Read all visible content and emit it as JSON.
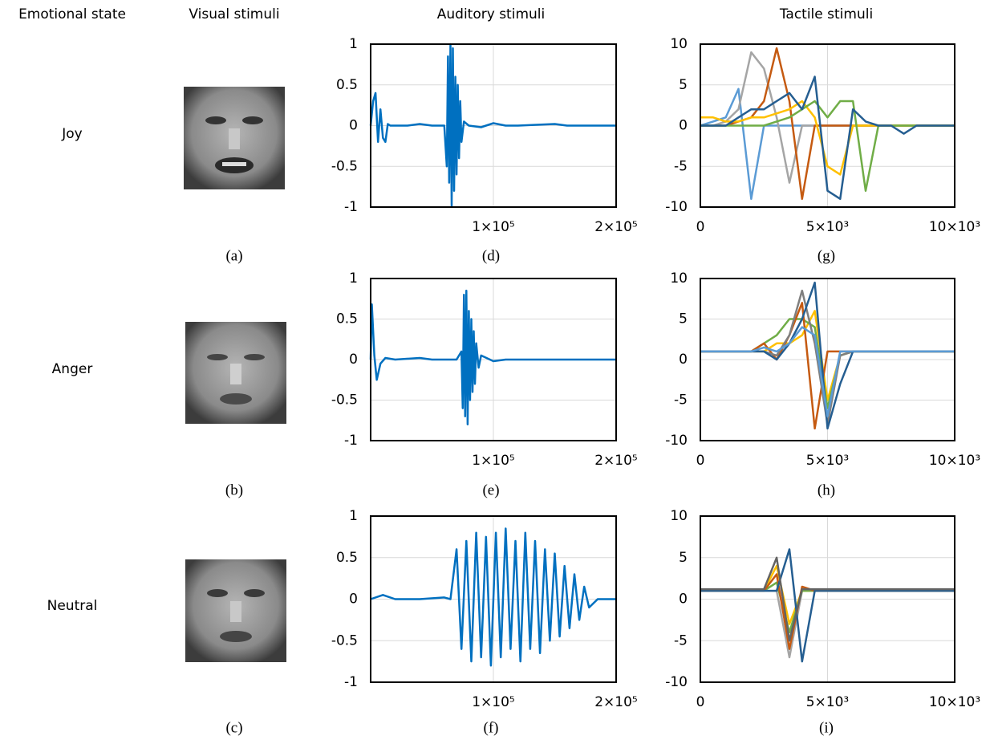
{
  "headers": [
    "Emotional state",
    "Visual stimuli",
    "Auditory stimuli",
    "Tactile stimuli"
  ],
  "rows": [
    {
      "label": "Joy",
      "caption": "(a)"
    },
    {
      "label": "Anger",
      "caption": "(b)"
    },
    {
      "label": "Neutral",
      "caption": "(c)"
    }
  ],
  "chart_data": [
    {
      "type": "line",
      "caption": "(d)",
      "x": [
        0,
        2000,
        4000,
        6000,
        8000,
        10000,
        12000,
        14000,
        16000,
        20000,
        30000,
        40000,
        50000,
        60000,
        62000,
        63000,
        64000,
        65000,
        66000,
        67000,
        68000,
        69000,
        70000,
        71000,
        72000,
        73000,
        74000,
        76000,
        80000,
        90000,
        100000,
        110000,
        120000,
        150000,
        160000,
        180000,
        200000
      ],
      "series": [
        {
          "color": "#0070c0",
          "values": [
            0,
            0.3,
            0.4,
            -0.2,
            0.2,
            -0.15,
            -0.2,
            0.02,
            0,
            0,
            0,
            0.02,
            0,
            0,
            -0.5,
            0.85,
            -0.7,
            1.0,
            -1.0,
            0.95,
            -0.8,
            0.6,
            -0.6,
            0.5,
            -0.4,
            0.3,
            -0.2,
            0.05,
            0,
            -0.02,
            0.03,
            0,
            0,
            0.02,
            0,
            0,
            0
          ]
        }
      ],
      "xlim": [
        0,
        200000
      ],
      "ylim": [
        -1,
        1
      ],
      "xticks": [
        {
          "value": 100000,
          "label": "1×10⁵"
        },
        {
          "value": 200000,
          "label": "2×10⁵"
        }
      ],
      "yticks": [
        -1,
        -0.5,
        0,
        0.5,
        1
      ],
      "grid": true
    },
    {
      "type": "line",
      "caption": "(e)",
      "x": [
        0,
        1000,
        3000,
        5000,
        8000,
        12000,
        20000,
        40000,
        50000,
        60000,
        70000,
        74000,
        75000,
        76000,
        77000,
        78000,
        79000,
        80000,
        81000,
        82000,
        83000,
        84000,
        85000,
        86000,
        88000,
        90000,
        100000,
        110000,
        120000,
        140000,
        160000,
        200000
      ],
      "series": [
        {
          "color": "#0070c0",
          "values": [
            0,
            0.68,
            0.05,
            -0.25,
            -0.05,
            0.02,
            0,
            0.02,
            0,
            0,
            0,
            0.1,
            -0.6,
            0.8,
            -0.7,
            0.85,
            -0.8,
            0.6,
            -0.5,
            0.5,
            -0.4,
            0.35,
            -0.3,
            0.2,
            -0.1,
            0.05,
            -0.02,
            0,
            0,
            0,
            0,
            0
          ]
        }
      ],
      "xlim": [
        0,
        200000
      ],
      "ylim": [
        -1,
        1
      ],
      "xticks": [
        {
          "value": 100000,
          "label": "1×10⁵"
        },
        {
          "value": 200000,
          "label": "2×10⁵"
        }
      ],
      "yticks": [
        -1,
        -0.5,
        0,
        0.5,
        1
      ],
      "grid": true
    },
    {
      "type": "line",
      "caption": "(f)",
      "x": [
        0,
        10000,
        20000,
        40000,
        60000,
        65000,
        70000,
        74000,
        78000,
        82000,
        86000,
        90000,
        94000,
        98000,
        102000,
        106000,
        110000,
        114000,
        118000,
        122000,
        126000,
        130000,
        134000,
        138000,
        142000,
        146000,
        150000,
        154000,
        158000,
        162000,
        166000,
        170000,
        174000,
        178000,
        185000,
        200000
      ],
      "series": [
        {
          "color": "#0070c0",
          "values": [
            0,
            0.05,
            0,
            0,
            0.02,
            0,
            0.6,
            -0.6,
            0.7,
            -0.75,
            0.8,
            -0.7,
            0.75,
            -0.8,
            0.8,
            -0.7,
            0.85,
            -0.6,
            0.7,
            -0.75,
            0.8,
            -0.6,
            0.7,
            -0.65,
            0.6,
            -0.5,
            0.55,
            -0.45,
            0.4,
            -0.35,
            0.3,
            -0.25,
            0.15,
            -0.1,
            0,
            0
          ]
        }
      ],
      "xlim": [
        0,
        200000
      ],
      "ylim": [
        -1,
        1
      ],
      "xticks": [
        {
          "value": 100000,
          "label": "1×10⁵"
        },
        {
          "value": 200000,
          "label": "2×10⁵"
        }
      ],
      "yticks": [
        -1,
        -0.5,
        0,
        0.5,
        1
      ],
      "grid": true
    },
    {
      "type": "line",
      "caption": "(g)",
      "x": [
        0,
        500,
        1000,
        1500,
        2000,
        2500,
        3000,
        3500,
        4000,
        4500,
        5000,
        5500,
        6000,
        6500,
        7000,
        7500,
        8000,
        8500,
        9000,
        9500,
        10000
      ],
      "series": [
        {
          "color": "#5b9bd5",
          "values": [
            0,
            0.5,
            1,
            4.5,
            -9,
            0,
            0,
            0,
            0,
            0,
            0,
            0,
            0,
            0,
            0,
            0,
            0,
            0,
            0,
            0,
            0
          ]
        },
        {
          "color": "#a5a5a5",
          "values": [
            0,
            0,
            0.5,
            2,
            9,
            7,
            1,
            -7,
            0,
            0,
            0,
            0,
            0,
            0,
            0,
            0,
            0,
            0,
            0,
            0,
            0
          ]
        },
        {
          "color": "#c55a11",
          "values": [
            0,
            0,
            0,
            0.5,
            1,
            3,
            9.5,
            3,
            -9,
            0,
            0,
            0,
            0,
            0,
            0,
            0,
            0,
            0,
            0,
            0,
            0
          ]
        },
        {
          "color": "#ffc000",
          "values": [
            1,
            1,
            0.5,
            0.5,
            1,
            1,
            1.5,
            2,
            3,
            1,
            -5,
            -6,
            0,
            0,
            0,
            0,
            0,
            0,
            0,
            0,
            0
          ]
        },
        {
          "color": "#70ad47",
          "values": [
            0,
            0,
            0,
            0,
            0,
            0,
            0.5,
            1,
            2,
            3,
            1,
            3,
            3,
            -8,
            0,
            0,
            0,
            0,
            0,
            0,
            0
          ]
        },
        {
          "color": "#255e91",
          "values": [
            0,
            0,
            0,
            1,
            2,
            2,
            3,
            4,
            2,
            6,
            -8,
            -9,
            2,
            0.5,
            0,
            0,
            -1,
            0,
            0,
            0,
            0
          ]
        }
      ],
      "xlim": [
        0,
        10000
      ],
      "ylim": [
        -10,
        10
      ],
      "xticks": [
        0,
        {
          "value": 5000,
          "label": "5×10³"
        },
        {
          "value": 10000,
          "label": "10×10³"
        }
      ],
      "yticks": [
        -10,
        -5,
        0,
        5,
        10
      ],
      "grid": true
    },
    {
      "type": "line",
      "caption": "(h)",
      "x": [
        0,
        500,
        1000,
        1500,
        2000,
        2500,
        3000,
        3500,
        4000,
        4500,
        5000,
        5500,
        6000,
        6500,
        7000,
        7500,
        8000,
        8500,
        9000,
        9500,
        10000
      ],
      "series": [
        {
          "color": "#ffc000",
          "values": [
            1,
            1,
            1,
            1,
            1,
            1,
            2,
            2,
            3,
            6,
            -5,
            0.5,
            1,
            1,
            1,
            1,
            1,
            1,
            1,
            1,
            1
          ]
        },
        {
          "color": "#70ad47",
          "values": [
            1,
            1,
            1,
            1,
            1,
            2,
            3,
            5,
            5,
            4,
            -6,
            0.5,
            1,
            1,
            1,
            1,
            1,
            1,
            1,
            1,
            1
          ]
        },
        {
          "color": "#c55a11",
          "values": [
            1,
            1,
            1,
            1,
            1,
            2,
            0,
            3,
            7,
            -8.5,
            1,
            1,
            1,
            1,
            1,
            1,
            1,
            1,
            1,
            1,
            1
          ]
        },
        {
          "color": "#7f7f7f",
          "values": [
            1,
            1,
            1,
            1,
            1,
            1,
            0.5,
            3,
            8.5,
            2,
            -8,
            0.5,
            1,
            1,
            1,
            1,
            1,
            1,
            1,
            1,
            1
          ]
        },
        {
          "color": "#255e91",
          "values": [
            1,
            1,
            1,
            1,
            1,
            1,
            0,
            2,
            5,
            9.5,
            -8.5,
            -3,
            1,
            1,
            1,
            1,
            1,
            1,
            1,
            1,
            1
          ]
        },
        {
          "color": "#5b9bd5",
          "values": [
            1,
            1,
            1,
            1,
            1,
            1.5,
            1,
            2,
            4,
            3,
            -7,
            1,
            1,
            1,
            1,
            1,
            1,
            1,
            1,
            1,
            1
          ]
        }
      ],
      "xlim": [
        0,
        10000
      ],
      "ylim": [
        -10,
        10
      ],
      "xticks": [
        0,
        {
          "value": 5000,
          "label": "5×10³"
        },
        {
          "value": 10000,
          "label": "10×10³"
        }
      ],
      "yticks": [
        -10,
        -5,
        0,
        5,
        10
      ],
      "grid": true
    },
    {
      "type": "line",
      "caption": "(i)",
      "x": [
        0,
        500,
        1000,
        1500,
        2000,
        2500,
        3000,
        3500,
        4000,
        4500,
        5000,
        5500,
        6000,
        6500,
        7000,
        7500,
        8000,
        8500,
        9000,
        9500,
        10000
      ],
      "series": [
        {
          "color": "#a5a5a5",
          "values": [
            1,
            1,
            1,
            1,
            1,
            1,
            1,
            -7,
            1,
            1,
            1,
            1,
            1,
            1,
            1,
            1,
            1,
            1,
            1,
            1,
            1
          ]
        },
        {
          "color": "#ffc000",
          "values": [
            1,
            1,
            1,
            1,
            1,
            1,
            4,
            -3,
            1,
            1,
            1,
            1,
            1,
            1,
            1,
            1,
            1,
            1,
            1,
            1,
            1
          ]
        },
        {
          "color": "#70ad47",
          "values": [
            1,
            1,
            1,
            1,
            1,
            1,
            2,
            -4,
            1,
            1,
            1,
            1,
            1,
            1,
            1,
            1,
            1,
            1,
            1,
            1,
            1
          ]
        },
        {
          "color": "#c55a11",
          "values": [
            1,
            1,
            1,
            1,
            1,
            1,
            3,
            -6,
            1.5,
            1,
            1,
            1,
            1,
            1,
            1,
            1,
            1,
            1,
            1,
            1,
            1
          ]
        },
        {
          "color": "#255e91",
          "values": [
            1,
            1,
            1,
            1,
            1,
            1,
            1,
            6,
            -7.5,
            1,
            1,
            1,
            1,
            1,
            1,
            1,
            1,
            1,
            1,
            1,
            1
          ]
        },
        {
          "color": "#636363",
          "values": [
            1.2,
            1.2,
            1.2,
            1.2,
            1.2,
            1.2,
            5,
            -5,
            1.2,
            1.2,
            1.2,
            1.2,
            1.2,
            1.2,
            1.2,
            1.2,
            1.2,
            1.2,
            1.2,
            1.2,
            1.2
          ]
        }
      ],
      "xlim": [
        0,
        10000
      ],
      "ylim": [
        -10,
        10
      ],
      "xticks": [
        0,
        {
          "value": 5000,
          "label": "5×10³"
        },
        {
          "value": 10000,
          "label": "10×10³"
        }
      ],
      "yticks": [
        -10,
        -5,
        0,
        5,
        10
      ],
      "grid": true
    }
  ]
}
